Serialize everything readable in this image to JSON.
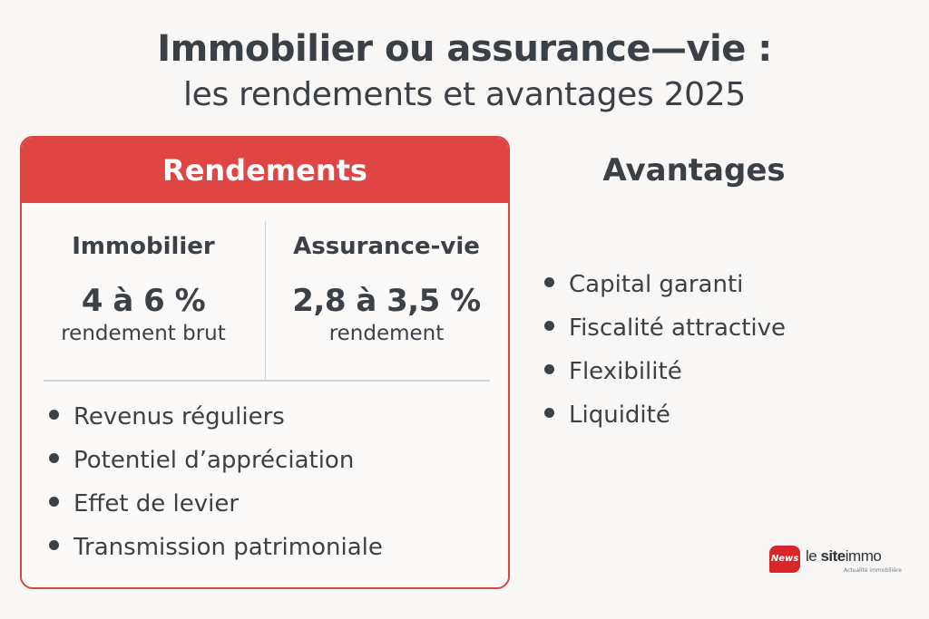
{
  "title": {
    "line1": "Immobilier ou assurance—vie :",
    "line2": "les rendements et avantages 2025"
  },
  "rendements": {
    "header": "Rendements",
    "immobilier": {
      "name": "Immobilier",
      "value": "4 à 6 %",
      "caption": "rendement brut"
    },
    "assurance": {
      "name": "Assurance-vie",
      "value": "2,8 à 3,5 %",
      "caption": "rendement"
    },
    "points": [
      "Revenus réguliers",
      "Potentiel d’appréciation",
      "Effet de levier",
      "Transmission patrimoniale"
    ]
  },
  "avantages": {
    "header": "Avantages",
    "points": [
      "Capital garanti",
      "Fiscalité attractive",
      "Flexibilité",
      "Liquidité"
    ]
  },
  "logo": {
    "badge": "News",
    "name_part1": "le ",
    "name_part2": "site",
    "name_part3": "immo",
    "tagline": "Actualité immobilière"
  },
  "colors": {
    "accent_red": "#df4542",
    "text_dark": "#3b4147",
    "background": "#f8f7f5"
  }
}
